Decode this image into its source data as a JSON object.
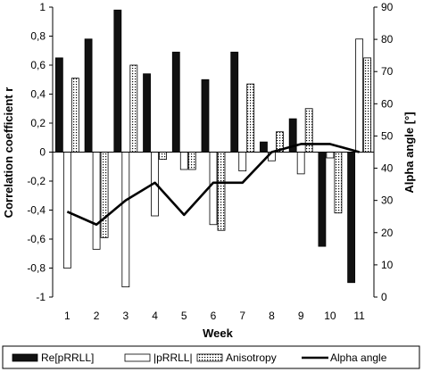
{
  "chart_data": {
    "type": "bar",
    "xlabel": "Week",
    "ylabel": "Correlation coefficient r",
    "y2label": "Alpha angle [°]",
    "categories": [
      "1",
      "2",
      "3",
      "4",
      "5",
      "6",
      "7",
      "8",
      "9",
      "10",
      "11"
    ],
    "ylim": [
      -1,
      1
    ],
    "y_ticks": [
      "-1",
      "-0,8",
      "-0,6",
      "-0,4",
      "-0,2",
      "0",
      "0,2",
      "0,4",
      "0,6",
      "0,8",
      "1"
    ],
    "y2lim": [
      0,
      90
    ],
    "y2_ticks": [
      "0",
      "10",
      "20",
      "30",
      "40",
      "50",
      "60",
      "70",
      "80",
      "90"
    ],
    "grid": false,
    "legend_position": "bottom",
    "series": [
      {
        "name": "Re[pRRLL]",
        "kind": "bar",
        "axis": "left",
        "fill": "#111111",
        "values": [
          0.65,
          0.78,
          0.98,
          0.54,
          0.69,
          0.5,
          0.69,
          0.07,
          0.23,
          -0.65,
          -0.9
        ]
      },
      {
        "name": "|pRRLL|",
        "kind": "bar",
        "axis": "left",
        "fill": "#ffffff",
        "values": [
          -0.8,
          -0.67,
          -0.93,
          -0.44,
          -0.12,
          -0.5,
          -0.13,
          -0.06,
          -0.15,
          -0.04,
          0.78
        ]
      },
      {
        "name": "Anisotropy",
        "kind": "bar",
        "axis": "left",
        "fill": "dotted",
        "values": [
          0.51,
          -0.59,
          0.6,
          -0.05,
          -0.12,
          -0.54,
          0.47,
          0.14,
          0.3,
          -0.42,
          0.65
        ]
      },
      {
        "name": "Alpha angle",
        "kind": "line",
        "axis": "right",
        "color": "#000000",
        "values": [
          26.5,
          22.5,
          30.0,
          35.5,
          25.5,
          35.5,
          35.5,
          45.0,
          47.5,
          47.5,
          45.0
        ]
      }
    ]
  }
}
